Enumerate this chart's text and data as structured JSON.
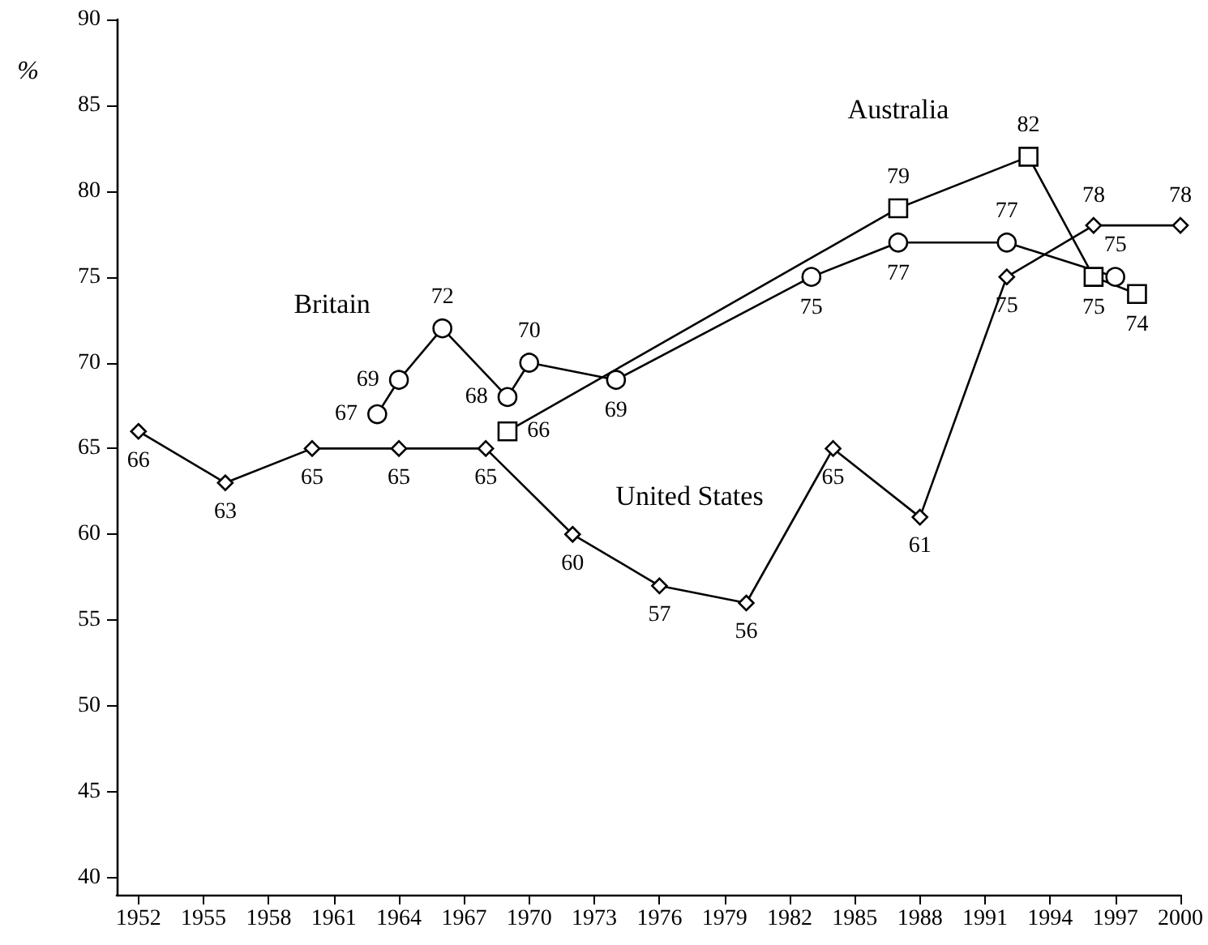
{
  "chart_data": {
    "type": "line",
    "ylabel": "%",
    "xlim": [
      1951,
      2000
    ],
    "xticks": [
      1952,
      1955,
      1958,
      1961,
      1964,
      1967,
      1970,
      1973,
      1976,
      1979,
      1982,
      1985,
      1988,
      1991,
      1994,
      1997,
      2000
    ],
    "ylim": [
      39,
      90
    ],
    "yticks": [
      40,
      45,
      50,
      55,
      60,
      65,
      70,
      75,
      80,
      85,
      90
    ],
    "grid": false,
    "legend": false,
    "line_style": "solid",
    "data_labels": true,
    "series": [
      {
        "name": "United States",
        "color": "#000000",
        "marker": "diamond",
        "x": [
          1952,
          1956,
          1960,
          1964,
          1968,
          1972,
          1976,
          1980,
          1984,
          1988,
          1992,
          1996,
          2000
        ],
        "values": [
          66,
          63,
          65,
          65,
          65,
          60,
          57,
          56,
          65,
          61,
          75,
          78,
          78
        ]
      },
      {
        "name": "Britain",
        "color": "#000000",
        "marker": "circle",
        "x": [
          1963,
          1964,
          1966,
          1969,
          1970,
          1974,
          1983,
          1987,
          1992,
          1997
        ],
        "values": [
          67,
          69,
          72,
          68,
          70,
          69,
          75,
          77,
          77,
          75
        ]
      },
      {
        "name": "Australia",
        "color": "#000000",
        "marker": "square",
        "x": [
          1969,
          1987,
          1993,
          1996,
          1998
        ],
        "values": [
          66,
          79,
          82,
          75,
          74
        ]
      }
    ]
  }
}
